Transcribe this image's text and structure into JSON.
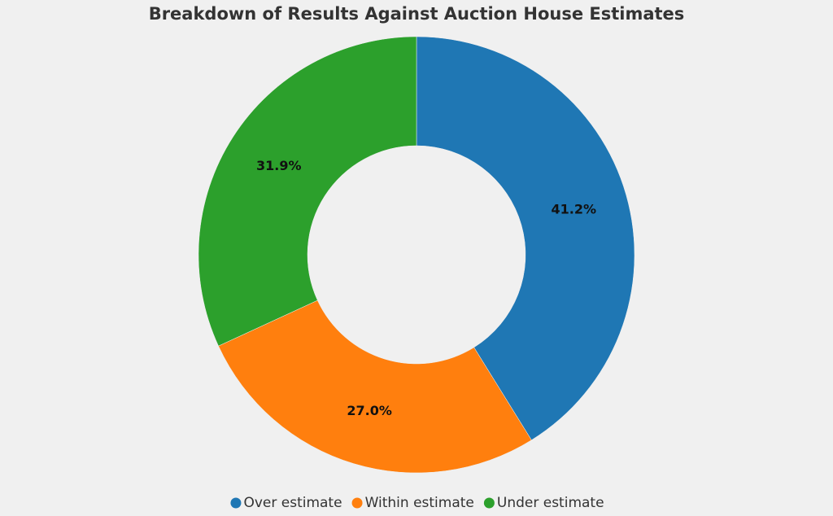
{
  "chart_data": {
    "type": "donut",
    "title": "Breakdown of Results Against Auction House Estimates",
    "categories": [
      "Over estimate",
      "Within estimate",
      "Under estimate"
    ],
    "values": [
      41.2,
      27.0,
      31.9
    ],
    "value_labels": [
      "41.2%",
      "27.0%",
      "31.9%"
    ],
    "colors": [
      "#1f77b4",
      "#ff7f0e",
      "#2ca02c"
    ],
    "legend": "bottom"
  }
}
